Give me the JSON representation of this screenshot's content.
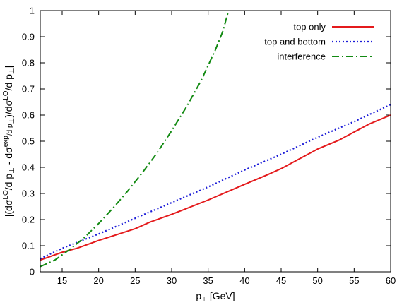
{
  "chart_data": {
    "type": "line",
    "title": "",
    "xlabel": "p⊥ [GeV]",
    "ylabel": "|(dσLO/d p⊥ - dσexp/d p⊥)/dσLO/d p⊥|",
    "ylabel_parts": {
      "open": "|(dσ",
      "lo1": "LO",
      "slash1": "/d p",
      "perp1": "⊥",
      "minus": " - dσ",
      "exp": "exp",
      "slash2": "/d p",
      "perp2": "⊥",
      "close": ")/dσ",
      "lo2": "LO",
      "slash3": "/d p",
      "perp3": "⊥",
      "end": "|"
    },
    "xlim": [
      12,
      60
    ],
    "ylim": [
      0,
      1
    ],
    "x_ticks": [
      "15",
      "20",
      "25",
      "30",
      "35",
      "40",
      "45",
      "50",
      "55",
      "60"
    ],
    "y_ticks": [
      "0",
      "0.1",
      "0.2",
      "0.3",
      "0.4",
      "0.5",
      "0.6",
      "0.7",
      "0.8",
      "0.9",
      "1"
    ],
    "grid": false,
    "legend_position": "top-right",
    "series": [
      {
        "name": "top only",
        "color": "#e41a1c",
        "dash": "solid",
        "x": [
          12,
          15,
          17,
          20,
          25,
          27,
          30,
          35,
          40,
          43,
          45,
          47,
          50,
          53,
          55,
          57,
          60
        ],
        "y": [
          0.045,
          0.075,
          0.09,
          0.12,
          0.165,
          0.19,
          0.22,
          0.275,
          0.335,
          0.37,
          0.395,
          0.425,
          0.47,
          0.505,
          0.535,
          0.565,
          0.6
        ]
      },
      {
        "name": "top and bottom",
        "color": "#1c1cd8",
        "dash": "dotted",
        "x": [
          12,
          15,
          20,
          25,
          30,
          35,
          40,
          45,
          50,
          55,
          60
        ],
        "y": [
          0.05,
          0.09,
          0.145,
          0.205,
          0.265,
          0.325,
          0.39,
          0.45,
          0.515,
          0.575,
          0.64
        ]
      },
      {
        "name": "interference",
        "color": "#128a12",
        "dash": "dashdot",
        "x": [
          12,
          14,
          16,
          18,
          20,
          22,
          24,
          26,
          28,
          30,
          32,
          34,
          36,
          37,
          37.8
        ],
        "y": [
          0.02,
          0.045,
          0.085,
          0.13,
          0.185,
          0.245,
          0.31,
          0.38,
          0.455,
          0.54,
          0.63,
          0.73,
          0.85,
          0.92,
          1.0
        ]
      }
    ]
  }
}
